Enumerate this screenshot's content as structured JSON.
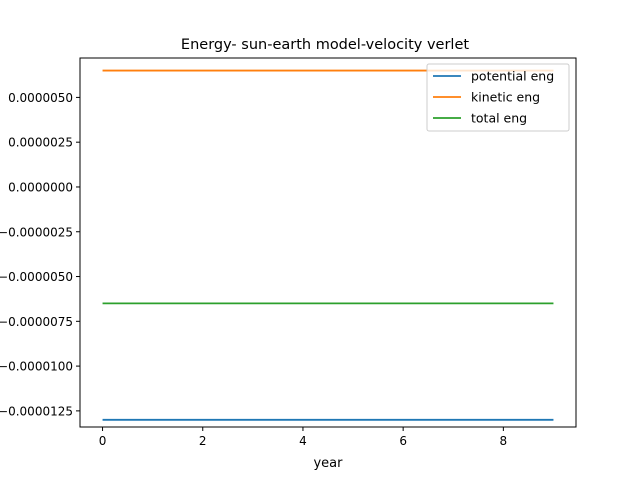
{
  "chart_data": {
    "type": "line",
    "title": "Energy- sun-earth model-velocity verlet",
    "xlabel": "year",
    "ylabel": "",
    "xlim": [
      -0.45,
      9.45
    ],
    "ylim": [
      -1.34e-05,
      7.2e-06
    ],
    "xticks": [
      0,
      2,
      4,
      6,
      8
    ],
    "xtick_labels": [
      "0",
      "2",
      "4",
      "6",
      "8"
    ],
    "yticks": [
      5e-06,
      2.5e-06,
      0.0,
      -2.5e-06,
      -5e-06,
      -7.5e-06,
      -1e-05,
      -1.25e-05
    ],
    "ytick_labels": [
      "0.0000050",
      "0.0000025",
      "0.0000000",
      "−0.0000025",
      "−0.0000050",
      "−0.0000075",
      "−0.0000100",
      "−0.0000125"
    ],
    "grid": false,
    "legend_position": "top-right",
    "x": [
      0,
      9
    ],
    "series": [
      {
        "name": "potential eng",
        "color": "#1f77b4",
        "values": [
          -1.3e-05,
          -1.3e-05
        ]
      },
      {
        "name": "kinetic eng",
        "color": "#ff7f0e",
        "values": [
          6.5e-06,
          6.5e-06
        ]
      },
      {
        "name": "total eng",
        "color": "#2ca02c",
        "values": [
          -6.5e-06,
          -6.5e-06
        ]
      }
    ]
  }
}
